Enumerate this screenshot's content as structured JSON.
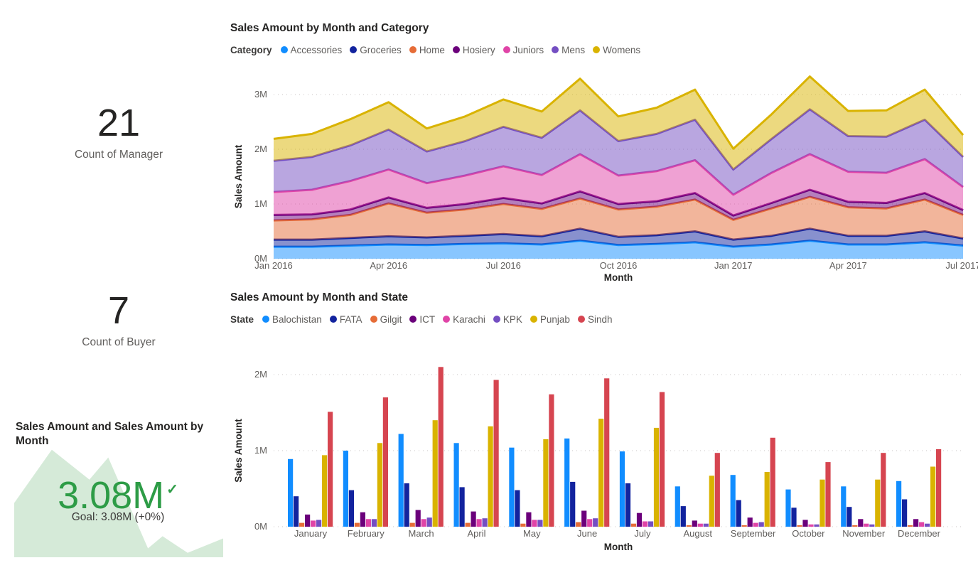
{
  "kpi": {
    "manager": {
      "value": "21",
      "label": "Count of Manager"
    },
    "buyer": {
      "value": "7",
      "label": "Count of Buyer"
    },
    "goal_card": {
      "title": "Sales Amount and Sales Amount by Month",
      "value": "3.08M",
      "check_icon": "✓",
      "goal_text": "Goal: 3.08M (+0%)",
      "value_color": "#2D9C46",
      "sparkline_fill": "#D5EAD8",
      "sparkline_points": [
        [
          0,
          0.51
        ],
        [
          0.18,
          0.03
        ],
        [
          0.36,
          0.3
        ],
        [
          0.45,
          0.1
        ],
        [
          0.64,
          0.92
        ],
        [
          0.71,
          0.81
        ],
        [
          0.83,
          0.96
        ],
        [
          1,
          0.83
        ]
      ]
    }
  },
  "chart_data": [
    {
      "type": "area",
      "stacked": true,
      "title": "Sales Amount by Month and Category",
      "legend_title": "Category",
      "legend_position": "top",
      "xlabel": "Month",
      "ylabel": "Sales Amount",
      "grid": true,
      "ylim": [
        0,
        3.5
      ],
      "yticks": [
        "0M",
        "1M",
        "2M",
        "3M"
      ],
      "values_unit": "M",
      "categories": [
        "Jan 2016",
        "Feb 2016",
        "Mar 2016",
        "Apr 2016",
        "May 2016",
        "Jun 2016",
        "Jul 2016",
        "Aug 2016",
        "Sep 2016",
        "Oct 2016",
        "Nov 2016",
        "Dec 2016",
        "Jan 2017",
        "Feb 2017",
        "Mar 2017",
        "Apr 2017",
        "May 2017",
        "Jun 2017",
        "Jul 2017"
      ],
      "xtick_positions": [
        0,
        3,
        6,
        9,
        12,
        15,
        18
      ],
      "xtick_labels": [
        "Jan 2016",
        "Apr 2016",
        "Jul 2016",
        "Oct 2016",
        "Jan 2017",
        "Apr 2017",
        "Jul 2017"
      ],
      "series": [
        {
          "name": "Accessories",
          "color": "#118DFF",
          "values": [
            0.22,
            0.22,
            0.24,
            0.26,
            0.25,
            0.27,
            0.28,
            0.26,
            0.33,
            0.25,
            0.27,
            0.3,
            0.22,
            0.26,
            0.33,
            0.26,
            0.26,
            0.3,
            0.24
          ]
        },
        {
          "name": "Groceries",
          "color": "#12239E",
          "values": [
            0.13,
            0.13,
            0.14,
            0.15,
            0.14,
            0.15,
            0.17,
            0.15,
            0.22,
            0.15,
            0.16,
            0.2,
            0.13,
            0.16,
            0.22,
            0.16,
            0.16,
            0.2,
            0.13
          ]
        },
        {
          "name": "Home",
          "color": "#E66C37",
          "values": [
            0.35,
            0.37,
            0.42,
            0.6,
            0.45,
            0.48,
            0.55,
            0.5,
            0.55,
            0.5,
            0.52,
            0.58,
            0.36,
            0.5,
            0.58,
            0.52,
            0.5,
            0.58,
            0.43
          ]
        },
        {
          "name": "Hosiery",
          "color": "#6B007B",
          "values": [
            0.1,
            0.09,
            0.1,
            0.11,
            0.09,
            0.1,
            0.11,
            0.1,
            0.13,
            0.1,
            0.1,
            0.12,
            0.08,
            0.1,
            0.13,
            0.1,
            0.1,
            0.12,
            0.09
          ]
        },
        {
          "name": "Juniors",
          "color": "#E044A7",
          "values": [
            0.42,
            0.45,
            0.52,
            0.51,
            0.45,
            0.52,
            0.58,
            0.52,
            0.68,
            0.52,
            0.55,
            0.6,
            0.38,
            0.55,
            0.65,
            0.55,
            0.55,
            0.62,
            0.42
          ]
        },
        {
          "name": "Mens",
          "color": "#744EC2",
          "values": [
            0.57,
            0.6,
            0.65,
            0.73,
            0.58,
            0.63,
            0.72,
            0.68,
            0.8,
            0.63,
            0.68,
            0.74,
            0.46,
            0.62,
            0.82,
            0.65,
            0.66,
            0.72,
            0.55
          ]
        },
        {
          "name": "Womens",
          "color": "#D9B300",
          "values": [
            0.4,
            0.42,
            0.48,
            0.5,
            0.42,
            0.45,
            0.5,
            0.48,
            0.58,
            0.45,
            0.48,
            0.55,
            0.38,
            0.45,
            0.6,
            0.46,
            0.48,
            0.55,
            0.4
          ]
        }
      ]
    },
    {
      "type": "bar",
      "grouped": true,
      "title": "Sales Amount by Month and State",
      "legend_title": "State",
      "legend_position": "top",
      "xlabel": "Month",
      "ylabel": "Sales Amount",
      "grid": true,
      "ylim": [
        0,
        2.2
      ],
      "yticks": [
        "0M",
        "1M",
        "2M"
      ],
      "values_unit": "M",
      "categories": [
        "January",
        "February",
        "March",
        "April",
        "May",
        "June",
        "July",
        "August",
        "September",
        "October",
        "November",
        "December"
      ],
      "series": [
        {
          "name": "Balochistan",
          "color": "#118DFF",
          "values": [
            0.89,
            1.0,
            1.22,
            1.1,
            1.04,
            1.16,
            0.99,
            0.53,
            0.68,
            0.49,
            0.53,
            0.6
          ]
        },
        {
          "name": "FATA",
          "color": "#12239E",
          "values": [
            0.4,
            0.48,
            0.57,
            0.52,
            0.48,
            0.59,
            0.57,
            0.27,
            0.35,
            0.25,
            0.26,
            0.36
          ]
        },
        {
          "name": "Gilgit",
          "color": "#E66C37",
          "values": [
            0.05,
            0.05,
            0.05,
            0.05,
            0.04,
            0.06,
            0.04,
            0.02,
            0.02,
            0.02,
            0.02,
            0.02
          ]
        },
        {
          "name": "ICT",
          "color": "#6B007B",
          "values": [
            0.16,
            0.19,
            0.22,
            0.2,
            0.19,
            0.21,
            0.18,
            0.08,
            0.12,
            0.09,
            0.1,
            0.1
          ]
        },
        {
          "name": "Karachi",
          "color": "#E044A7",
          "values": [
            0.08,
            0.1,
            0.1,
            0.1,
            0.09,
            0.1,
            0.07,
            0.04,
            0.05,
            0.03,
            0.04,
            0.06
          ]
        },
        {
          "name": "KPK",
          "color": "#744EC2",
          "values": [
            0.09,
            0.1,
            0.12,
            0.11,
            0.09,
            0.11,
            0.07,
            0.04,
            0.06,
            0.03,
            0.03,
            0.04
          ]
        },
        {
          "name": "Punjab",
          "color": "#D9B300",
          "values": [
            0.94,
            1.1,
            1.4,
            1.32,
            1.15,
            1.42,
            1.3,
            0.67,
            0.72,
            0.62,
            0.62,
            0.79
          ]
        },
        {
          "name": "Sindh",
          "color": "#D64550",
          "values": [
            1.51,
            1.7,
            2.1,
            1.93,
            1.74,
            1.95,
            1.77,
            0.97,
            1.17,
            0.85,
            0.97,
            1.02
          ]
        }
      ]
    }
  ],
  "theme": {
    "background": "#FFFFFF",
    "title_color": "#252423",
    "axis_tick_color": "#605E5C",
    "axis_title_color": "#252423",
    "grid_color": "#C8C6C4"
  }
}
